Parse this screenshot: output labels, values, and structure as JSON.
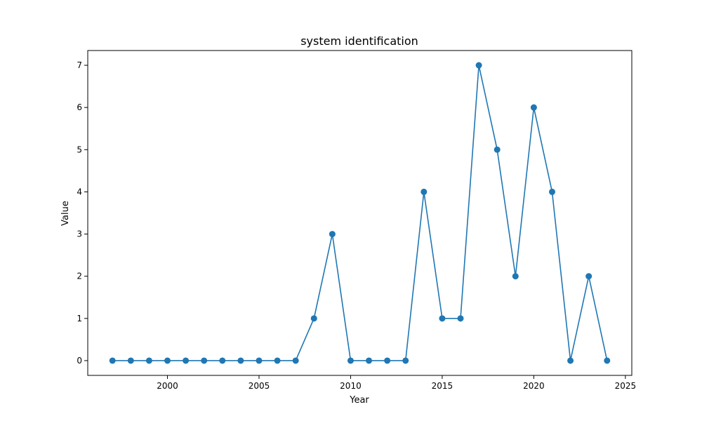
{
  "chart_data": {
    "type": "line",
    "title": "system identification",
    "xlabel": "Year",
    "ylabel": "Value",
    "x": [
      1997,
      1998,
      1999,
      2000,
      2001,
      2002,
      2003,
      2004,
      2005,
      2006,
      2007,
      2008,
      2009,
      2010,
      2011,
      2012,
      2013,
      2014,
      2015,
      2016,
      2017,
      2018,
      2019,
      2020,
      2021,
      2022,
      2023,
      2024
    ],
    "series": [
      {
        "values": [
          0,
          0,
          0,
          0,
          0,
          0,
          0,
          0,
          0,
          0,
          0,
          1,
          3,
          0,
          0,
          0,
          0,
          4,
          1,
          1,
          7,
          5,
          2,
          6,
          4,
          0,
          2,
          0
        ],
        "color": "#1f77b4",
        "marker": "circle"
      }
    ],
    "xlim": [
      1995.65,
      2025.35
    ],
    "ylim": [
      -0.35,
      7.35
    ],
    "xticks": [
      2000,
      2005,
      2010,
      2015,
      2020,
      2025
    ],
    "yticks": [
      0,
      1,
      2,
      3,
      4,
      5,
      6,
      7
    ],
    "grid": false
  }
}
